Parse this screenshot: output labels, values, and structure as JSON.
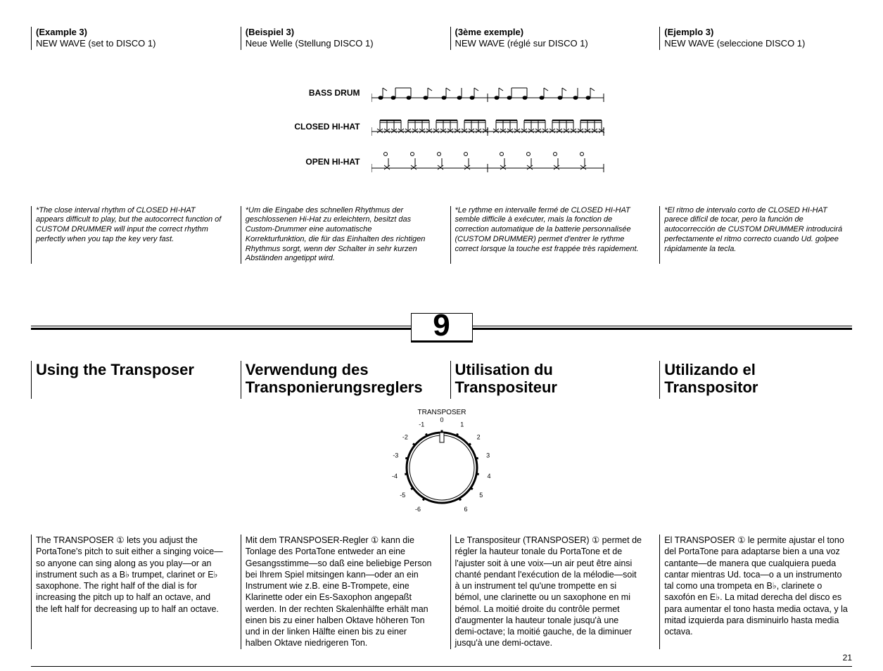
{
  "examples": {
    "en": {
      "label": "(Example 3)",
      "sub": "NEW WAVE (set to DISCO 1)"
    },
    "de": {
      "label": "(Beispiel 3)",
      "sub": "Neue Welle (Stellung DISCO 1)"
    },
    "fr": {
      "label": "(3ème exemple)",
      "sub": "NEW WAVE (réglé sur DISCO 1)"
    },
    "es": {
      "label": "(Ejemplo 3)",
      "sub": "NEW WAVE (seleccione DISCO 1)"
    }
  },
  "notation": {
    "bass": "BASS DRUM",
    "closed": "CLOSED HI-HAT",
    "open": "OPEN HI-HAT"
  },
  "notes": {
    "en": "*The close interval rhythm of CLOSED HI-HAT appears difficult to play, but the autocorrect function of CUSTOM DRUMMER will input the correct rhythm perfectly when you tap the key very fast.",
    "de": "*Um die Eingabe des schnellen Rhythmus der geschlossenen Hi-Hat zu erleichtern, besitzt das Custom-Drummer eine automatische Korrekturfunktion, die für das Einhalten des richtigen Rhythmus sorgt, wenn der Schalter in sehr kurzen Abständen angetippt wird.",
    "fr": "*Le rythme en intervalle fermé de CLOSED HI-HAT semble difficile à exécuter, mais la fonction de correction automatique de la batterie personnalisée (CUSTOM DRUMMER) permet d'entrer le rythme correct lorsque la touche est frappée très rapidement.",
    "es": "*El ritmo de intervalo corto de CLOSED HI-HAT parece difícil de tocar, pero la función de autocorrección de CUSTOM DRUMMER introducirá perfectamente el ritmo correcto cuando Ud. golpee rápidamente la tecla."
  },
  "section_number": "9",
  "headings": {
    "en": "Using the Transposer",
    "de": "Verwendung des Transponierungsreglers",
    "fr": "Utilisation du Transpositeur",
    "es": "Utilizando el Transpositor"
  },
  "dial": {
    "label": "TRANSPOSER",
    "ticks": [
      "-6",
      "-5",
      "-4",
      "-3",
      "-2",
      "-1",
      "0",
      "1",
      "2",
      "3",
      "4",
      "5",
      "6"
    ],
    "radius": 56,
    "outer_stroke": "#000000"
  },
  "body": {
    "en": "The TRANSPOSER ① lets you adjust the PortaTone's pitch to suit either a singing voice—so anyone can sing along as you play—or an instrument such as a B♭ trumpet, clarinet or E♭ saxophone. The right half of the dial is for increasing the pitch up to half an octave, and the left half for decreasing up to half an octave.",
    "de": "Mit dem TRANSPOSER-Regler ① kann die Tonlage des PortaTone entweder an eine Gesangsstimme—so daß eine beliebige Person bei Ihrem Spiel mitsingen kann—oder an ein Instrument wie z.B. eine B-Trompete, eine Klarinette oder ein Es-Saxophon angepaßt werden. In der rechten Skalenhälfte erhält man einen bis zu einer halben Oktave höheren Ton und in der linken Hälfte einen bis zu einer halben Oktave niedrigeren Ton.",
    "fr": "Le Transpositeur (TRANSPOSER) ① permet de régler la hauteur tonale du PortaTone et de l'ajuster soit à une voix—un air peut être ainsi chanté pendant l'exécution de la mélodie—soit à un instrument tel qu'une trompette en si bémol, une clarinette ou un saxophone en mi bémol. La moitié droite du contrôle permet d'augmenter la hauteur tonale jusqu'à une demi-octave; la moitié gauche, de la diminuer jusqu'à une demi-octave.",
    "es": "El TRANSPOSER ① le permite ajustar el tono del PortaTone para adaptarse bien a una voz cantante—de manera que cualquiera pueda cantar mientras Ud. toca—o a un instrumento tal como una trompeta en B♭, clarinete o saxofón en E♭. La mitad derecha del disco es para aumentar el tono hasta media octava, y la mitad izquierda para disminuirlo hasta media octava."
  },
  "page_number": "21"
}
